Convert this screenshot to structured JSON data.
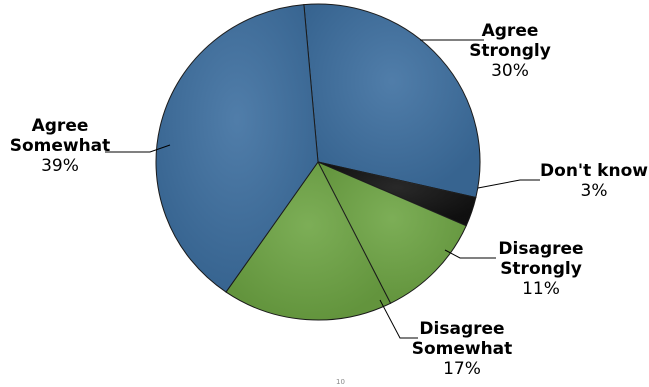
{
  "chart_data": {
    "type": "pie",
    "title": "",
    "slices": [
      {
        "label_lines": [
          "Agree",
          "Strongly"
        ],
        "value": 30,
        "pct_label": "30%",
        "color": "#3D6FA0"
      },
      {
        "label_lines": [
          "Don't know"
        ],
        "value": 3,
        "pct_label": "3%",
        "color": "#111111"
      },
      {
        "label_lines": [
          "Disagree",
          "Strongly"
        ],
        "value": 11,
        "pct_label": "11%",
        "color": "#6EA544"
      },
      {
        "label_lines": [
          "Disagree",
          "Somewhat"
        ],
        "value": 17,
        "pct_label": "17%",
        "color": "#6EA544"
      },
      {
        "label_lines": [
          "Agree",
          "Somewhat"
        ],
        "value": 39,
        "pct_label": "39%",
        "color": "#3D6FA0"
      }
    ],
    "footer_mark": "10"
  }
}
